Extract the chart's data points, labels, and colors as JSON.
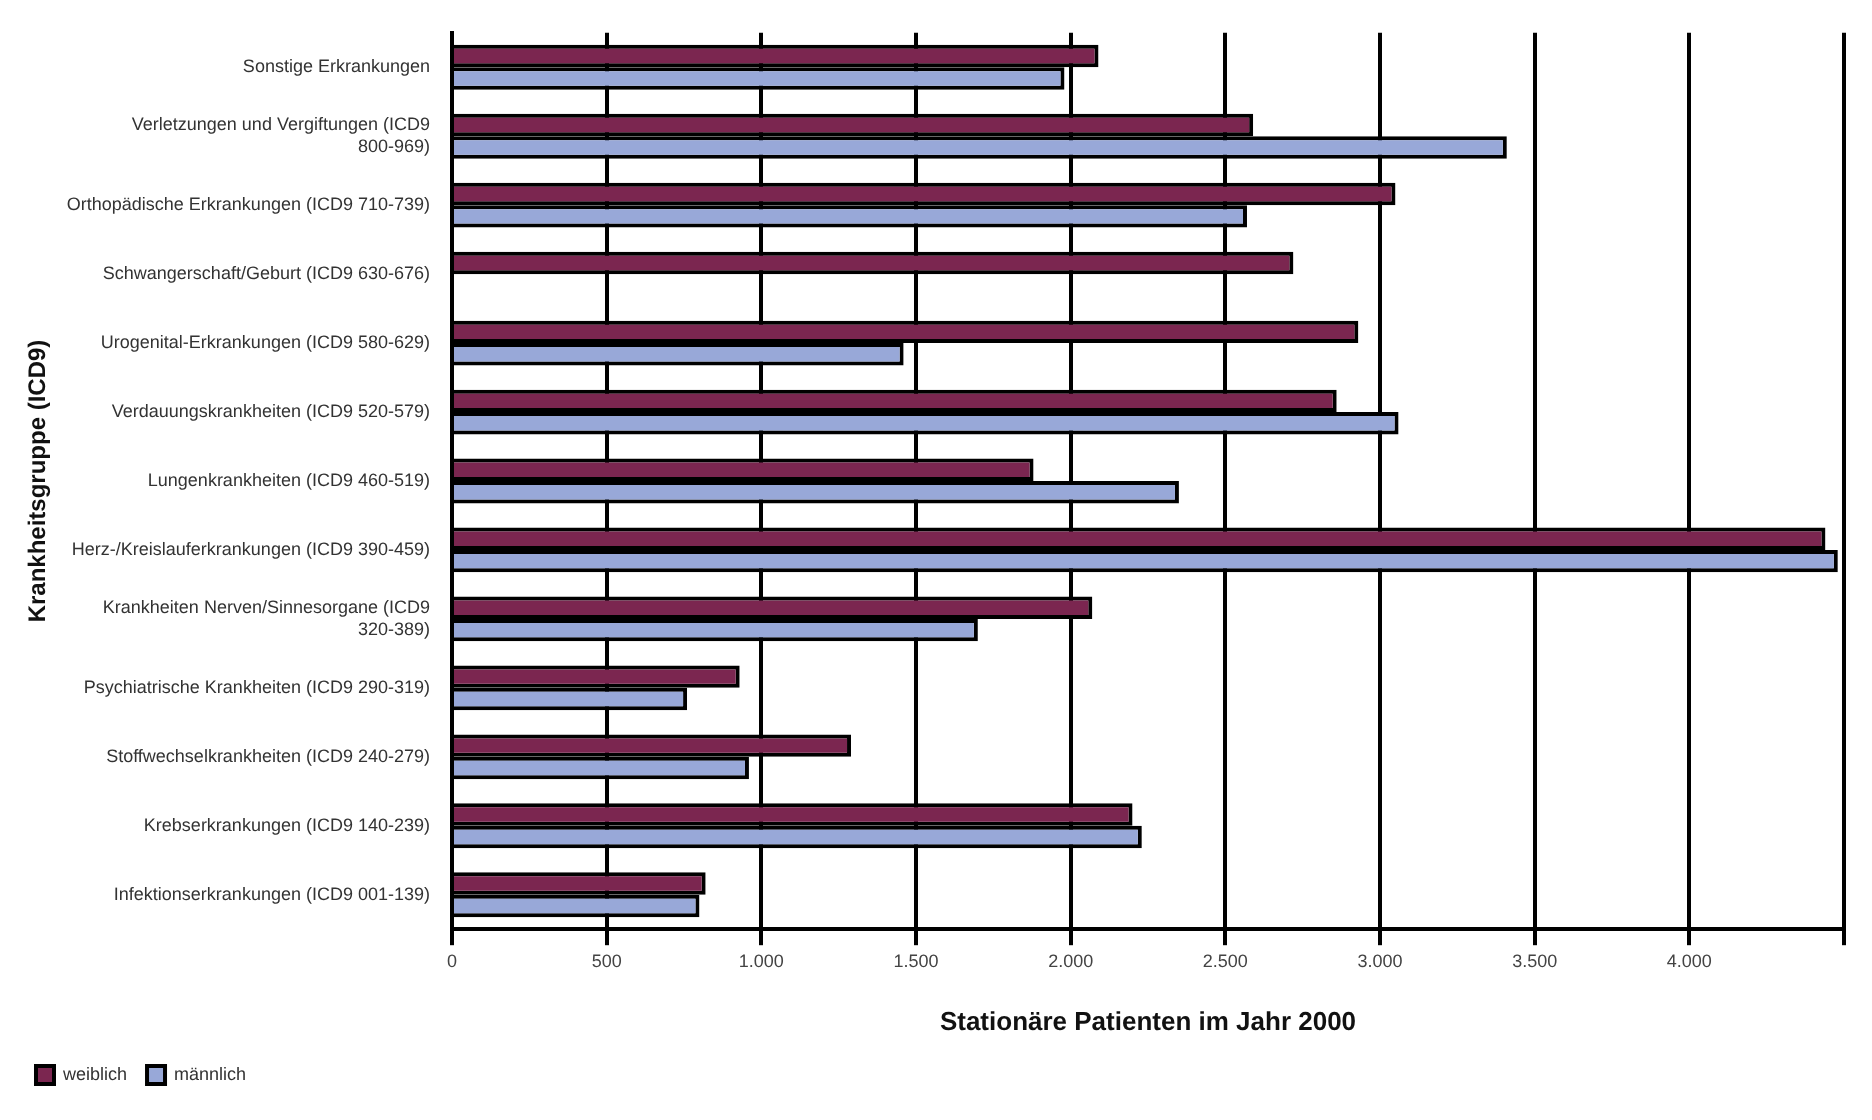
{
  "chart_data": {
    "type": "bar",
    "orientation": "horizontal",
    "xlabel": "Stationäre Patienten im Jahr 2000",
    "ylabel": "Krankheitsgruppe (ICD9)",
    "categories": [
      "Sonstige Erkrankungen",
      "Verletzungen und Vergiftungen (ICD9 800-969)",
      "Orthopädische Erkrankungen (ICD9 710-739)",
      "Schwangerschaft/Geburt (ICD9 630-676)",
      "Urogenital-Erkrankungen (ICD9 580-629)",
      "Verdauungskrankheiten (ICD9 520-579)",
      "Lungenkrankheiten (ICD9 460-519)",
      "Herz-/Kreislauferkrankungen (ICD9 390-459)",
      "Krankheiten Nerven/Sinnesorgane (ICD9 320-389)",
      "Psychiatrische Krankheiten (ICD9 290-319)",
      "Stoffwechselkrankheiten (ICD9 240-279)",
      "Krebserkrankungen (ICD9 140-239)",
      "Infektionserkrankungen (ICD9 001-139)"
    ],
    "series": [
      {
        "name": "weiblich",
        "color": "#7b2650",
        "values": [
          2090,
          2590,
          3050,
          2720,
          2930,
          2860,
          1880,
          4440,
          2070,
          930,
          1290,
          2200,
          820
        ]
      },
      {
        "name": "männlich",
        "color": "#98a8d8",
        "values": [
          1980,
          3410,
          2570,
          null,
          1460,
          3060,
          2350,
          4480,
          1700,
          760,
          960,
          2230,
          800
        ]
      }
    ],
    "xlim": [
      0,
      4500
    ],
    "xticks": [
      {
        "value": 0,
        "label": "0"
      },
      {
        "value": 500,
        "label": "500"
      },
      {
        "value": 1000,
        "label": "1.000"
      },
      {
        "value": 1500,
        "label": "1.500"
      },
      {
        "value": 2000,
        "label": "2.000"
      },
      {
        "value": 2500,
        "label": "2.500"
      },
      {
        "value": 3000,
        "label": "3.000"
      },
      {
        "value": 3500,
        "label": "3.500"
      },
      {
        "value": 4000,
        "label": "4.000"
      },
      {
        "value": 4500,
        "label": null
      }
    ],
    "grid": "x",
    "legend": "bottom left"
  }
}
